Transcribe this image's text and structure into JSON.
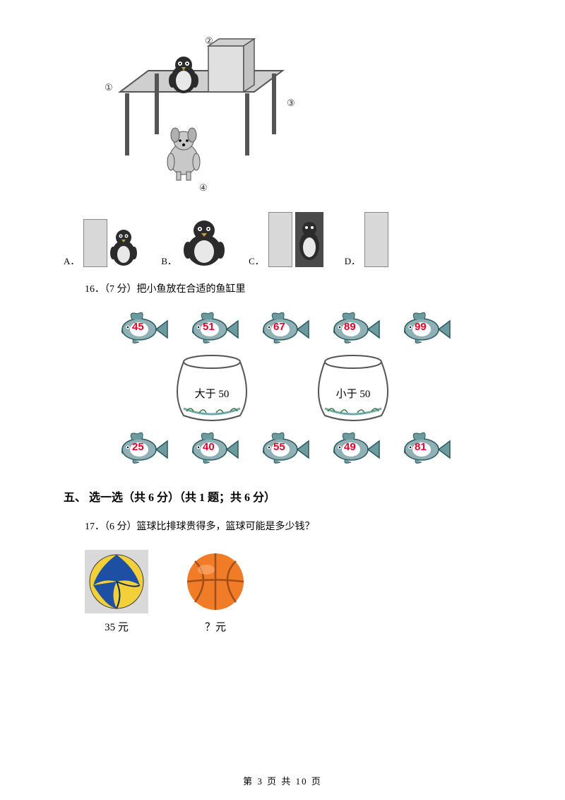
{
  "figure_labels": {
    "l1": "①",
    "l2": "②",
    "l3": "③",
    "l4": "④"
  },
  "options": {
    "a": "A．",
    "b": "B．",
    "c": "C．",
    "d": "D．"
  },
  "q16": {
    "text": "16．（7 分）把小鱼放在合适的鱼缸里",
    "fish_top": [
      "45",
      "51",
      "67",
      "89",
      "99"
    ],
    "fish_bottom": [
      "25",
      "40",
      "55",
      "49",
      "81"
    ],
    "bowl_left": "大于 50",
    "bowl_right": "小于 50",
    "fish_body_color": "#8fb0b5",
    "fish_fin_color": "#6b9a9f",
    "fish_number_color": "#e4002b",
    "bowl_stroke": "#555555",
    "bowl_water": "#6fa8a8"
  },
  "section5": "五、 选一选（共 6 分）（共 1 题；共 6 分）",
  "q17": {
    "text": "17．（6 分）篮球比排球贵得多，篮球可能是多少钱？",
    "volleyball": {
      "label": "35 元",
      "colors": {
        "yellow": "#f3cf3a",
        "blue": "#1d4fa3",
        "bg": "#d9d9d9"
      }
    },
    "basketball": {
      "label": "？元",
      "color": "#f07c28",
      "line": "#a24e16"
    }
  },
  "footer": "第 3 页 共 10 页",
  "colors": {
    "table_fill": "#cfcfcf",
    "table_stroke": "#555555",
    "box_fill": "#e0e0e0",
    "penguin_body": "#2b2b2b",
    "penguin_belly": "#e8e8e8",
    "dog_fill": "#c8c8c8",
    "text": "#000000"
  }
}
